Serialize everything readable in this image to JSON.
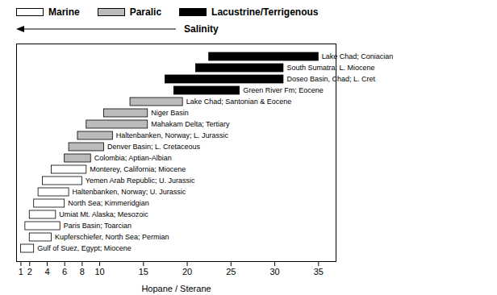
{
  "chart_data": {
    "type": "bar",
    "orientation": "horizontal",
    "xlabel": "Hopane / Sterane",
    "xlim": [
      0.5,
      37
    ],
    "xticks": [
      1,
      2,
      4,
      6,
      8,
      10,
      15,
      20,
      25,
      30,
      35
    ],
    "annotations": [
      "Salinity"
    ],
    "categories": [
      "Lake Chad; Coniacian",
      "South Sumatra; L. Miocene",
      "Doseo Basin, Chad; L. Cret",
      "Green River Fm; Eocene",
      "Lake Chad; Santonian & Eocene",
      "Niger Basin",
      "Mahakam Delta; Tertiary",
      "Haltenbanken, Norway; L. Jurassic",
      "Denver Basin; L. Cretaceous",
      "Colombia; Aptian-Albian",
      "Monterey, California; Miocene",
      "Yemen Arab Republic; U. Jurassic",
      "Haltenbanken, Norway; U. Jurassic",
      "North Sea; Kimmeridgian",
      "Umiat Mt. Alaska; Mesozoic",
      "Paris Basin; Toarcian",
      "Kupferschiefer, North Sea; Permian",
      "Gulf of Suez, Egypt; Miocene"
    ],
    "series": [
      {
        "name": "Marine",
        "color": "white",
        "values": [
          null,
          null,
          null,
          null,
          null,
          null,
          null,
          null,
          null,
          null,
          [
            4.5,
            8.5
          ],
          [
            3.5,
            8.0
          ],
          [
            3.0,
            6.5
          ],
          [
            2.5,
            6.0
          ],
          [
            2.0,
            5.0
          ],
          [
            1.5,
            5.5
          ],
          [
            2.0,
            4.5
          ],
          [
            1.0,
            2.5
          ]
        ]
      },
      {
        "name": "Paralic",
        "color": "#bbbbbb",
        "values": [
          null,
          null,
          null,
          null,
          [
            13.5,
            19.5
          ],
          [
            10.5,
            15.5
          ],
          [
            8.5,
            15.5
          ],
          [
            7.5,
            11.5
          ],
          [
            6.5,
            10.5
          ],
          [
            6.0,
            9.0
          ],
          null,
          null,
          null,
          null,
          null,
          null,
          null,
          null
        ]
      },
      {
        "name": "Lacustrine/Terrigenous",
        "color": "black",
        "values": [
          [
            22.5,
            35.0
          ],
          [
            21.0,
            31.0
          ],
          [
            17.5,
            31.0
          ],
          [
            18.5,
            26.0
          ],
          null,
          null,
          null,
          null,
          null,
          null,
          null,
          null,
          null,
          null,
          null,
          null,
          null,
          null
        ]
      }
    ],
    "legend": "top"
  }
}
